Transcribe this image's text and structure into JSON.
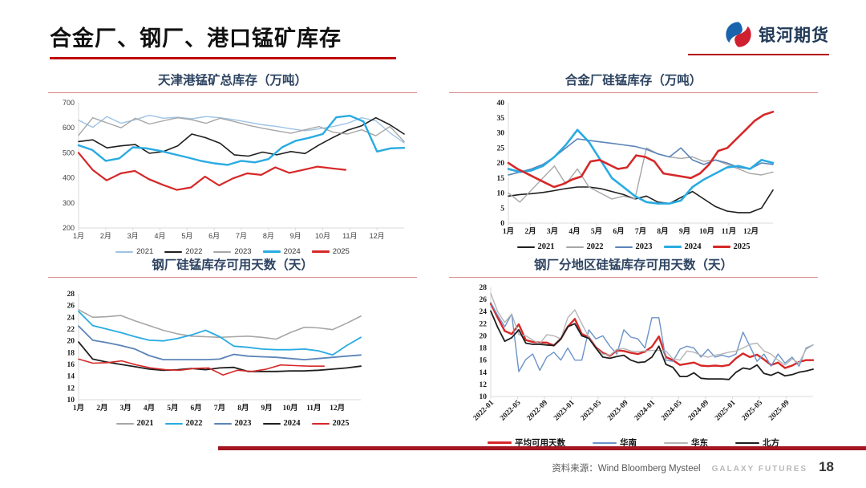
{
  "page": {
    "title": "合金厂、钢厂、港口锰矿库存",
    "source": "资料来源：Wind Bloomberg Mysteel",
    "brand_footer": "GALAXY FUTURES",
    "page_number": "18"
  },
  "logo": {
    "text": "银河期货",
    "icon": "galaxy-swirl-icon",
    "blue": "#1964ad",
    "red": "#d0202f"
  },
  "accent_colors": {
    "title_underline": "#c00000",
    "chart_title_text": "#2e4462",
    "chart_title_underline": "#d98b8b",
    "footer_bar": "#a31621",
    "axis": "#d9d9d9"
  },
  "chart_data": [
    {
      "type": "line",
      "title": "天津港锰矿总库存（万吨）",
      "ylabel": "万吨",
      "ylim": [
        200,
        700
      ],
      "yticks": [
        200,
        300,
        400,
        500,
        600,
        700
      ],
      "x_labels": [
        "1月",
        "2月",
        "3月",
        "4月",
        "5月",
        "6月",
        "7月",
        "8月",
        "9月",
        "10月",
        "11月",
        "12月"
      ],
      "grid": false,
      "legend_position": "bottom",
      "tick_style": "sans",
      "rotate_x_labels": false,
      "series": [
        {
          "name": "2021",
          "color": "#9dc3e6",
          "width": 1.4,
          "span": 1,
          "values": [
            630,
            602,
            645,
            618,
            632,
            650,
            638,
            642,
            636,
            645,
            640,
            632,
            622,
            612,
            605,
            596,
            588,
            596,
            605,
            618,
            640,
            628,
            580,
            540
          ]
        },
        {
          "name": "2022",
          "color": "#1f1f1f",
          "width": 1.6,
          "span": 1,
          "values": [
            545,
            552,
            520,
            528,
            533,
            498,
            505,
            528,
            575,
            560,
            538,
            492,
            487,
            503,
            492,
            505,
            497,
            532,
            562,
            590,
            608,
            640,
            612,
            575
          ]
        },
        {
          "name": "2023",
          "color": "#a6a6a6",
          "width": 1.4,
          "span": 1,
          "values": [
            570,
            640,
            620,
            600,
            638,
            615,
            628,
            640,
            632,
            618,
            638,
            625,
            610,
            598,
            588,
            578,
            592,
            605,
            582,
            575,
            592,
            568,
            605,
            545
          ]
        },
        {
          "name": "2024",
          "color": "#29abe2",
          "width": 2.4,
          "span": 1,
          "values": [
            530,
            512,
            468,
            478,
            522,
            518,
            508,
            495,
            482,
            468,
            458,
            452,
            468,
            462,
            475,
            522,
            548,
            560,
            575,
            642,
            648,
            625,
            505,
            518,
            520
          ]
        },
        {
          "name": "2025",
          "color": "#d62828",
          "width": 2.2,
          "span": 0.82,
          "values": [
            500,
            432,
            390,
            418,
            428,
            395,
            372,
            352,
            362,
            405,
            370,
            398,
            418,
            412,
            442,
            420,
            432,
            445,
            438,
            432
          ]
        }
      ]
    },
    {
      "type": "line",
      "title": "合金厂硅锰库存（万吨）",
      "ylabel": "万吨",
      "ylim": [
        0,
        40
      ],
      "yticks": [
        0,
        5,
        10,
        15,
        20,
        25,
        30,
        35,
        40
      ],
      "x_labels": [
        "1月",
        "2月",
        "3月",
        "4月",
        "5月",
        "6月",
        "7月",
        "8月",
        "9月",
        "10月",
        "11月",
        "12月"
      ],
      "grid": false,
      "legend_position": "bottom",
      "tick_style": "serif",
      "rotate_x_labels": false,
      "series": [
        {
          "name": "2021",
          "color": "#1f1f1f",
          "width": 1.6,
          "span": 1,
          "values": [
            9,
            9.5,
            9.8,
            10.2,
            10.8,
            11.5,
            12,
            12,
            11.5,
            10.5,
            9.5,
            8,
            9,
            7,
            6.5,
            8.5,
            10.5,
            8,
            5.5,
            4,
            3.5,
            3.5,
            5,
            11
          ]
        },
        {
          "name": "2022",
          "color": "#a6a6a6",
          "width": 1.4,
          "span": 1,
          "values": [
            10,
            7,
            11,
            15,
            19,
            13,
            18,
            12,
            10,
            8,
            9,
            8,
            25,
            23,
            22,
            21.5,
            22,
            20.5,
            21,
            19.5,
            18,
            16.5,
            16,
            17
          ]
        },
        {
          "name": "2023",
          "color": "#5b84b8",
          "width": 1.6,
          "span": 1,
          "values": [
            16,
            17,
            18,
            19.5,
            22,
            25,
            28,
            27.5,
            27,
            26.5,
            26,
            25.5,
            24.5,
            23,
            22,
            25,
            21,
            19.5,
            21,
            20,
            18.5,
            18,
            20,
            19.5
          ]
        },
        {
          "name": "2024",
          "color": "#29abe2",
          "width": 2.6,
          "span": 1,
          "values": [
            18,
            17,
            17.5,
            19,
            22,
            26,
            31,
            27,
            21,
            15,
            12,
            9,
            7,
            6.5,
            6.5,
            7.5,
            12,
            14.5,
            16.5,
            18.5,
            19,
            18,
            21,
            20
          ]
        },
        {
          "name": "2025",
          "color": "#d62828",
          "width": 2.6,
          "span": 1,
          "values": [
            20,
            18,
            16.5,
            15,
            13.5,
            12,
            13,
            14.5,
            15.5,
            20.5,
            21,
            19.5,
            18,
            18.5,
            22.5,
            22,
            20.5,
            16.5,
            16,
            15.5,
            15,
            16.5,
            19.5,
            24,
            25,
            28,
            31,
            34,
            36,
            37
          ]
        }
      ]
    },
    {
      "type": "line",
      "title": "钢厂硅锰库存可用天数（天）",
      "ylabel": "天",
      "ylim": [
        10,
        28
      ],
      "yticks": [
        10,
        12,
        14,
        16,
        18,
        20,
        22,
        24,
        26,
        28
      ],
      "x_labels": [
        "1月",
        "2月",
        "3月",
        "4月",
        "5月",
        "6月",
        "7月",
        "8月",
        "9月",
        "10月",
        "11月",
        "12月"
      ],
      "grid": false,
      "legend_position": "bottom",
      "tick_style": "serif",
      "rotate_x_labels": false,
      "series": [
        {
          "name": "2021",
          "color": "#a6a6a6",
          "width": 1.6,
          "span": 1,
          "values": [
            25.3,
            24.0,
            24.1,
            24.3,
            23.4,
            22.6,
            21.8,
            21.2,
            20.8,
            20.7,
            20.6,
            20.7,
            20.8,
            20.6,
            20.3,
            21.4,
            22.3,
            22.2,
            21.9,
            23.0,
            24.2
          ]
        },
        {
          "name": "2022",
          "color": "#29abe2",
          "width": 1.8,
          "span": 1,
          "values": [
            25.0,
            22.6,
            22.0,
            21.4,
            20.7,
            20.1,
            20.0,
            20.4,
            21.0,
            21.8,
            20.7,
            19.1,
            18.9,
            18.6,
            18.5,
            18.5,
            18.6,
            18.3,
            17.6,
            19.2,
            20.6
          ]
        },
        {
          "name": "2023",
          "color": "#5b84b8",
          "width": 1.8,
          "span": 1,
          "values": [
            22.5,
            20.1,
            19.7,
            19.2,
            18.6,
            17.5,
            16.8,
            16.8,
            16.8,
            16.8,
            16.9,
            17.7,
            17.4,
            17.3,
            17.2,
            17.0,
            16.8,
            17.0,
            17.2,
            17.4,
            17.6
          ]
        },
        {
          "name": "2024",
          "color": "#1f1f1f",
          "width": 1.8,
          "span": 1,
          "values": [
            19.8,
            16.9,
            16.4,
            16.0,
            15.6,
            15.2,
            15.0,
            15.1,
            15.3,
            15.1,
            15.4,
            15.5,
            14.8,
            14.8,
            14.8,
            14.9,
            14.9,
            15.0,
            15.2,
            15.4,
            15.7
          ]
        },
        {
          "name": "2025",
          "color": "#d62828",
          "width": 1.6,
          "span": 0.87,
          "values": [
            16.9,
            16.2,
            16.3,
            16.6,
            15.9,
            15.4,
            15.1,
            15.0,
            15.3,
            15.4,
            14.2,
            15.0,
            14.8,
            15.2,
            15.9,
            15.8,
            15.7,
            15.7
          ]
        }
      ]
    },
    {
      "type": "line",
      "title": "钢厂分地区硅锰库存可用天数（天）",
      "ylabel": "天",
      "ylim": [
        10,
        28
      ],
      "yticks": [
        10,
        12,
        14,
        16,
        18,
        20,
        22,
        24,
        26,
        28
      ],
      "x_labels": [
        "2022-01",
        "2022-05",
        "2022-09",
        "2023-01",
        "2023-05",
        "2023-09",
        "2024-01",
        "2024-05",
        "2024-09",
        "2025-01",
        "2025-05",
        "2025-09"
      ],
      "grid": false,
      "legend_position": "bottom",
      "tick_style": "serif",
      "rotate_x_labels": true,
      "series": [
        {
          "name": "平均可用天数",
          "color": "#d62828",
          "width": 2.4,
          "span": 1,
          "values": [
            25.3,
            23.0,
            20.8,
            20.3,
            21.9,
            19.3,
            19.0,
            18.9,
            18.9,
            18.4,
            19.5,
            21.5,
            22.8,
            20.3,
            19.8,
            18.1,
            17.2,
            16.7,
            17.6,
            17.5,
            17.2,
            17.0,
            17.4,
            18.2,
            19.9,
            16.5,
            16.0,
            15.2,
            15.4,
            15.6,
            15.1,
            15.0,
            15.1,
            15.0,
            15.2,
            16.3,
            17.1,
            16.5,
            16.9,
            16.1,
            15.2,
            15.6,
            14.7,
            15.1,
            15.7,
            16.0,
            16.0
          ]
        },
        {
          "name": "华南",
          "color": "#6b93c9",
          "width": 1.4,
          "span": 1,
          "values": [
            25.5,
            23.4,
            21.5,
            23.6,
            14.1,
            16.1,
            17.0,
            14.3,
            16.5,
            17.3,
            16.0,
            18.0,
            16.0,
            16.0,
            21.0,
            19.5,
            20.0,
            18.3,
            17.0,
            21.0,
            19.8,
            19.5,
            18.0,
            23.0,
            23.0,
            16.0,
            15.8,
            17.8,
            18.3,
            18.0,
            16.5,
            17.8,
            16.5,
            16.8,
            16.5,
            17.0,
            20.6,
            18.3,
            15.8,
            17.0,
            15.0,
            17.0,
            15.5,
            16.5,
            15.0,
            18.0,
            18.5
          ]
        },
        {
          "name": "华东",
          "color": "#b5b5b5",
          "width": 1.4,
          "span": 1,
          "values": [
            27.0,
            24.0,
            22.2,
            23.6,
            20.2,
            20.0,
            19.3,
            18.7,
            20.2,
            20.0,
            19.5,
            23.0,
            24.3,
            22.0,
            19.8,
            18.0,
            17.0,
            16.8,
            17.8,
            17.9,
            17.5,
            17.4,
            17.5,
            17.6,
            17.6,
            17.5,
            16.2,
            16.0,
            17.5,
            17.3,
            16.8,
            16.5,
            16.8,
            17.0,
            17.3,
            17.5,
            18.0,
            18.6,
            18.8,
            17.5,
            17.0,
            16.0,
            15.2,
            16.2,
            15.5,
            17.8,
            18.5
          ]
        },
        {
          "name": "北方",
          "color": "#1f1f1f",
          "width": 1.8,
          "span": 1,
          "values": [
            24.1,
            21.4,
            19.1,
            19.7,
            21.0,
            18.8,
            18.6,
            18.6,
            18.5,
            18.4,
            19.5,
            21.5,
            22.0,
            20.0,
            19.6,
            18.0,
            16.5,
            16.3,
            16.6,
            16.8,
            16.0,
            15.6,
            15.7,
            16.5,
            18.3,
            15.3,
            14.8,
            13.3,
            13.3,
            13.9,
            13.0,
            12.9,
            12.9,
            12.9,
            12.8,
            14.0,
            14.7,
            14.5,
            15.2,
            13.8,
            13.5,
            14.0,
            13.4,
            13.6,
            14.0,
            14.2,
            14.5
          ]
        }
      ]
    }
  ]
}
